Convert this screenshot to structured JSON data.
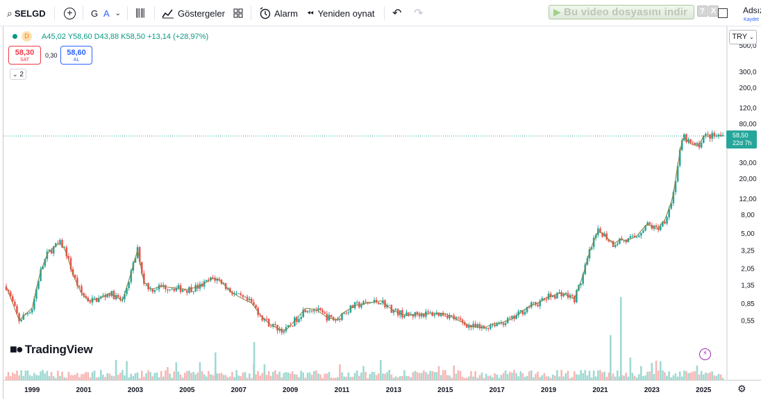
{
  "toolbar": {
    "symbol": "SELGD",
    "interval": "G",
    "chart_style": "A",
    "indicators_label": "Göstergeler",
    "alarm_label": "Alarm",
    "replay_label": "Yeniden oynat",
    "video_download_label": "Bu video dosyasını indir",
    "help_glyph": "?",
    "close_glyph": "X",
    "user_name": "Adsız",
    "user_sub": "Kaydet"
  },
  "legend": {
    "exchange_badge": "D",
    "ohlc": "A45,02 Y58,60 D43,88 K58,50 +13,14 (+28,97%)"
  },
  "trade": {
    "sell_price": "58,30",
    "sell_label": "SAT",
    "spread": "0,30",
    "buy_price": "58,60",
    "buy_label": "AL"
  },
  "collapse_label": "2",
  "currency_label": "TRY",
  "price_tag": {
    "price": "58,50",
    "countdown": "22d 7h"
  },
  "y_axis_labels": [
    "500,0",
    "300,0",
    "200,0",
    "120,0",
    "80,00",
    "30,00",
    "20,00",
    "12,00",
    "8,00",
    "5,00",
    "3,25",
    "2,05",
    "1,35",
    "0,85",
    "0,55"
  ],
  "x_axis_labels": [
    "1999",
    "2001",
    "2003",
    "2005",
    "2007",
    "2009",
    "2011",
    "2013",
    "2015",
    "2017",
    "2019",
    "2021",
    "2023",
    "2025"
  ],
  "brand": "TradingView",
  "colors": {
    "up": "#26a69a",
    "down": "#ef5350",
    "ma": "#8b7d3a",
    "volume_up": "#9fd9d2",
    "volume_down": "#f7b7b5",
    "last_price_line": "#26a69a"
  },
  "chart_data": {
    "type": "candlestick",
    "symbol": "SELGD",
    "interval": "monthly",
    "scale": "log",
    "x_range": [
      1998.0,
      2025.8
    ],
    "series": [
      {
        "name": "price",
        "x": [
          1998.0,
          1998.5,
          1999.0,
          1999.3,
          1999.6,
          1999.9,
          2000.1,
          2000.3,
          2000.6,
          2000.9,
          2001.2,
          2001.6,
          2002.0,
          2002.5,
          2002.8,
          2003.1,
          2003.3,
          2003.6,
          2004.0,
          2004.5,
          2005.0,
          2005.5,
          2006.0,
          2006.3,
          2006.6,
          2007.0,
          2007.5,
          2007.9,
          2008.2,
          2008.5,
          2008.8,
          2009.0,
          2009.3,
          2009.6,
          2010.0,
          2010.4,
          2010.8,
          2011.0,
          2011.5,
          2012.0,
          2012.5,
          2013.0,
          2013.5,
          2014.0,
          2014.5,
          2015.0,
          2015.5,
          2016.0,
          2016.5,
          2016.8,
          2017.2,
          2017.6,
          2018.0,
          2018.3,
          2018.6,
          2019.0,
          2019.5,
          2020.0,
          2020.3,
          2020.6,
          2020.9,
          2021.1,
          2021.5,
          2021.8,
          2022.0,
          2022.4,
          2022.8,
          2023.2,
          2023.5,
          2023.8,
          2024.0,
          2024.2,
          2024.5,
          2024.8,
          2025.0
        ],
        "close": [
          1.3,
          0.55,
          0.75,
          1.8,
          3.0,
          3.6,
          3.9,
          3.2,
          1.7,
          1.1,
          0.9,
          0.95,
          1.1,
          0.9,
          1.7,
          3.4,
          1.5,
          1.2,
          1.3,
          1.25,
          1.2,
          1.3,
          1.6,
          1.5,
          1.2,
          1.0,
          0.85,
          0.6,
          0.5,
          0.45,
          0.42,
          0.48,
          0.6,
          0.75,
          0.72,
          0.6,
          0.55,
          0.65,
          0.8,
          0.85,
          0.9,
          0.7,
          0.62,
          0.65,
          0.65,
          0.65,
          0.55,
          0.47,
          0.45,
          0.5,
          0.52,
          0.57,
          0.7,
          0.8,
          0.85,
          1.0,
          1.1,
          0.95,
          1.6,
          3.2,
          5.2,
          5.0,
          3.8,
          4.3,
          4.1,
          4.6,
          6.3,
          5.5,
          7.0,
          12,
          28,
          58,
          48,
          45,
          58.5
        ]
      },
      {
        "name": "volume",
        "note": "relative bars at bottom of chart"
      }
    ],
    "last": {
      "open": 45.02,
      "high": 58.6,
      "low": 43.88,
      "close": 58.5,
      "change": 13.14,
      "change_pct": 28.97
    }
  }
}
